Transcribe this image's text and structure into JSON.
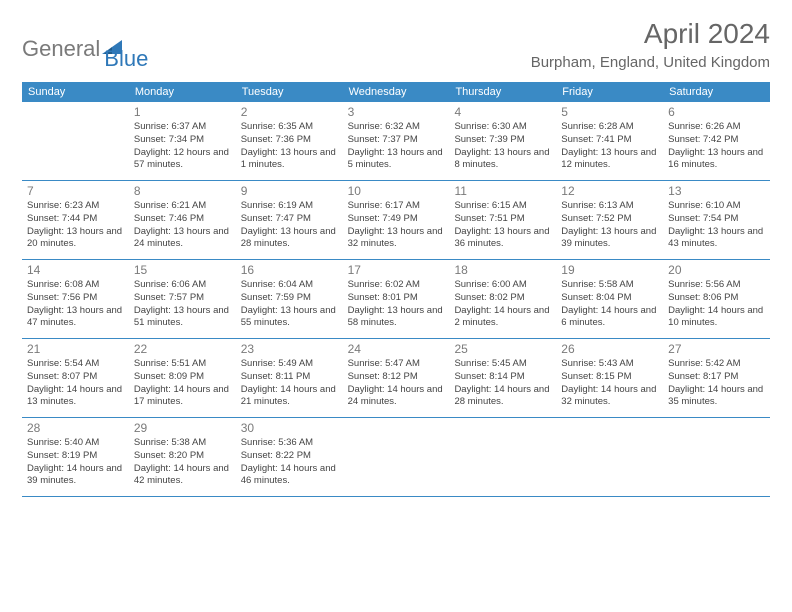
{
  "logo": {
    "general": "General",
    "blue": "Blue"
  },
  "title": "April 2024",
  "location": "Burpham, England, United Kingdom",
  "colors": {
    "header_bg": "#3a8ac5",
    "header_text": "#ffffff",
    "day_num": "#7a7a7a",
    "body_text": "#444444",
    "rule": "#3a8ac5",
    "logo_gray": "#7a7a7a",
    "logo_blue": "#2f78b8",
    "title_color": "#666666",
    "bg": "#ffffff"
  },
  "fonts": {
    "month_title_pt": 28,
    "location_pt": 15,
    "weekday_pt": 11,
    "daynum_pt": 12,
    "body_pt": 9.5
  },
  "weekdays": [
    "Sunday",
    "Monday",
    "Tuesday",
    "Wednesday",
    "Thursday",
    "Friday",
    "Saturday"
  ],
  "weeks": [
    [
      {
        "n": "",
        "sr": "",
        "ss": "",
        "dl": ""
      },
      {
        "n": "1",
        "sr": "Sunrise: 6:37 AM",
        "ss": "Sunset: 7:34 PM",
        "dl": "Daylight: 12 hours and 57 minutes."
      },
      {
        "n": "2",
        "sr": "Sunrise: 6:35 AM",
        "ss": "Sunset: 7:36 PM",
        "dl": "Daylight: 13 hours and 1 minutes."
      },
      {
        "n": "3",
        "sr": "Sunrise: 6:32 AM",
        "ss": "Sunset: 7:37 PM",
        "dl": "Daylight: 13 hours and 5 minutes."
      },
      {
        "n": "4",
        "sr": "Sunrise: 6:30 AM",
        "ss": "Sunset: 7:39 PM",
        "dl": "Daylight: 13 hours and 8 minutes."
      },
      {
        "n": "5",
        "sr": "Sunrise: 6:28 AM",
        "ss": "Sunset: 7:41 PM",
        "dl": "Daylight: 13 hours and 12 minutes."
      },
      {
        "n": "6",
        "sr": "Sunrise: 6:26 AM",
        "ss": "Sunset: 7:42 PM",
        "dl": "Daylight: 13 hours and 16 minutes."
      }
    ],
    [
      {
        "n": "7",
        "sr": "Sunrise: 6:23 AM",
        "ss": "Sunset: 7:44 PM",
        "dl": "Daylight: 13 hours and 20 minutes."
      },
      {
        "n": "8",
        "sr": "Sunrise: 6:21 AM",
        "ss": "Sunset: 7:46 PM",
        "dl": "Daylight: 13 hours and 24 minutes."
      },
      {
        "n": "9",
        "sr": "Sunrise: 6:19 AM",
        "ss": "Sunset: 7:47 PM",
        "dl": "Daylight: 13 hours and 28 minutes."
      },
      {
        "n": "10",
        "sr": "Sunrise: 6:17 AM",
        "ss": "Sunset: 7:49 PM",
        "dl": "Daylight: 13 hours and 32 minutes."
      },
      {
        "n": "11",
        "sr": "Sunrise: 6:15 AM",
        "ss": "Sunset: 7:51 PM",
        "dl": "Daylight: 13 hours and 36 minutes."
      },
      {
        "n": "12",
        "sr": "Sunrise: 6:13 AM",
        "ss": "Sunset: 7:52 PM",
        "dl": "Daylight: 13 hours and 39 minutes."
      },
      {
        "n": "13",
        "sr": "Sunrise: 6:10 AM",
        "ss": "Sunset: 7:54 PM",
        "dl": "Daylight: 13 hours and 43 minutes."
      }
    ],
    [
      {
        "n": "14",
        "sr": "Sunrise: 6:08 AM",
        "ss": "Sunset: 7:56 PM",
        "dl": "Daylight: 13 hours and 47 minutes."
      },
      {
        "n": "15",
        "sr": "Sunrise: 6:06 AM",
        "ss": "Sunset: 7:57 PM",
        "dl": "Daylight: 13 hours and 51 minutes."
      },
      {
        "n": "16",
        "sr": "Sunrise: 6:04 AM",
        "ss": "Sunset: 7:59 PM",
        "dl": "Daylight: 13 hours and 55 minutes."
      },
      {
        "n": "17",
        "sr": "Sunrise: 6:02 AM",
        "ss": "Sunset: 8:01 PM",
        "dl": "Daylight: 13 hours and 58 minutes."
      },
      {
        "n": "18",
        "sr": "Sunrise: 6:00 AM",
        "ss": "Sunset: 8:02 PM",
        "dl": "Daylight: 14 hours and 2 minutes."
      },
      {
        "n": "19",
        "sr": "Sunrise: 5:58 AM",
        "ss": "Sunset: 8:04 PM",
        "dl": "Daylight: 14 hours and 6 minutes."
      },
      {
        "n": "20",
        "sr": "Sunrise: 5:56 AM",
        "ss": "Sunset: 8:06 PM",
        "dl": "Daylight: 14 hours and 10 minutes."
      }
    ],
    [
      {
        "n": "21",
        "sr": "Sunrise: 5:54 AM",
        "ss": "Sunset: 8:07 PM",
        "dl": "Daylight: 14 hours and 13 minutes."
      },
      {
        "n": "22",
        "sr": "Sunrise: 5:51 AM",
        "ss": "Sunset: 8:09 PM",
        "dl": "Daylight: 14 hours and 17 minutes."
      },
      {
        "n": "23",
        "sr": "Sunrise: 5:49 AM",
        "ss": "Sunset: 8:11 PM",
        "dl": "Daylight: 14 hours and 21 minutes."
      },
      {
        "n": "24",
        "sr": "Sunrise: 5:47 AM",
        "ss": "Sunset: 8:12 PM",
        "dl": "Daylight: 14 hours and 24 minutes."
      },
      {
        "n": "25",
        "sr": "Sunrise: 5:45 AM",
        "ss": "Sunset: 8:14 PM",
        "dl": "Daylight: 14 hours and 28 minutes."
      },
      {
        "n": "26",
        "sr": "Sunrise: 5:43 AM",
        "ss": "Sunset: 8:15 PM",
        "dl": "Daylight: 14 hours and 32 minutes."
      },
      {
        "n": "27",
        "sr": "Sunrise: 5:42 AM",
        "ss": "Sunset: 8:17 PM",
        "dl": "Daylight: 14 hours and 35 minutes."
      }
    ],
    [
      {
        "n": "28",
        "sr": "Sunrise: 5:40 AM",
        "ss": "Sunset: 8:19 PM",
        "dl": "Daylight: 14 hours and 39 minutes."
      },
      {
        "n": "29",
        "sr": "Sunrise: 5:38 AM",
        "ss": "Sunset: 8:20 PM",
        "dl": "Daylight: 14 hours and 42 minutes."
      },
      {
        "n": "30",
        "sr": "Sunrise: 5:36 AM",
        "ss": "Sunset: 8:22 PM",
        "dl": "Daylight: 14 hours and 46 minutes."
      },
      {
        "n": "",
        "sr": "",
        "ss": "",
        "dl": ""
      },
      {
        "n": "",
        "sr": "",
        "ss": "",
        "dl": ""
      },
      {
        "n": "",
        "sr": "",
        "ss": "",
        "dl": ""
      },
      {
        "n": "",
        "sr": "",
        "ss": "",
        "dl": ""
      }
    ]
  ]
}
